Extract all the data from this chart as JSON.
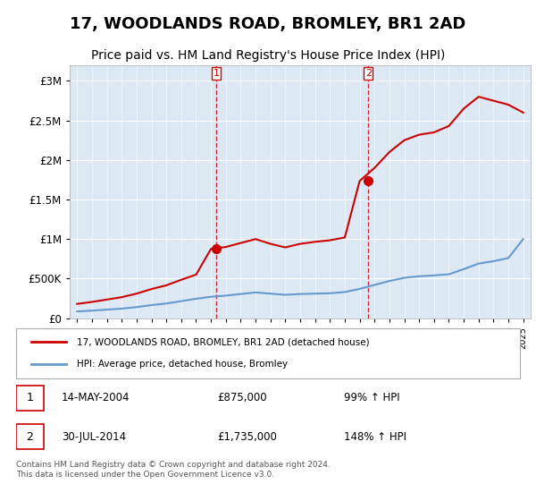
{
  "title": "17, WOODLANDS ROAD, BROMLEY, BR1 2AD",
  "subtitle": "Price paid vs. HM Land Registry's House Price Index (HPI)",
  "title_fontsize": 13,
  "subtitle_fontsize": 10,
  "hpi_years": [
    1995,
    1996,
    1997,
    1998,
    1999,
    2000,
    2001,
    2002,
    2003,
    2004,
    2005,
    2006,
    2007,
    2008,
    2009,
    2010,
    2011,
    2012,
    2013,
    2014,
    2015,
    2016,
    2017,
    2018,
    2019,
    2020,
    2021,
    2022,
    2023,
    2024,
    2025
  ],
  "hpi_values": [
    85000,
    95000,
    108000,
    120000,
    140000,
    165000,
    185000,
    215000,
    245000,
    270000,
    285000,
    305000,
    325000,
    310000,
    295000,
    305000,
    310000,
    315000,
    330000,
    370000,
    420000,
    470000,
    510000,
    530000,
    540000,
    555000,
    620000,
    690000,
    720000,
    760000,
    1000000
  ],
  "red_line_years": [
    1995,
    1996,
    1997,
    1998,
    1999,
    2000,
    2001,
    2002,
    2003,
    2004,
    2005,
    2006,
    2007,
    2008,
    2009,
    2010,
    2011,
    2012,
    2013,
    2014,
    2015,
    2016,
    2017,
    2018,
    2019,
    2020,
    2021,
    2022,
    2023,
    2024,
    2025
  ],
  "red_line_values": [
    180000,
    205000,
    235000,
    265000,
    310000,
    368000,
    415000,
    485000,
    550000,
    875000,
    900000,
    950000,
    1000000,
    940000,
    895000,
    940000,
    965000,
    985000,
    1020000,
    1735000,
    1900000,
    2100000,
    2250000,
    2320000,
    2350000,
    2430000,
    2650000,
    2800000,
    2750000,
    2700000,
    2600000
  ],
  "sale1_year": 2004.37,
  "sale1_value": 875000,
  "sale2_year": 2014.58,
  "sale2_value": 1735000,
  "vline1_year": 2004.37,
  "vline2_year": 2014.58,
  "ylim": [
    0,
    3200000
  ],
  "yticks": [
    0,
    500000,
    1000000,
    1500000,
    2000000,
    2500000,
    3000000
  ],
  "ytick_labels": [
    "£0",
    "£500K",
    "£1M",
    "£1.5M",
    "£2M",
    "£2.5M",
    "£3M"
  ],
  "red_color": "#cc0000",
  "blue_color": "#6699cc",
  "vline_color": "#cc0000",
  "bg_color": "#dce9f5",
  "plot_bg": "#dce9f5",
  "legend_line1": "17, WOODLANDS ROAD, BROMLEY, BR1 2AD (detached house)",
  "legend_line2": "HPI: Average price, detached house, Bromley",
  "annot1_label": "1",
  "annot1_date": "14-MAY-2004",
  "annot1_price": "£875,000",
  "annot1_pct": "99% ↑ HPI",
  "annot2_label": "2",
  "annot2_date": "30-JUL-2014",
  "annot2_price": "£1,735,000",
  "annot2_pct": "148% ↑ HPI",
  "footer": "Contains HM Land Registry data © Crown copyright and database right 2024.\nThis data is licensed under the Open Government Licence v3.0.",
  "xlim_start": 1994.5,
  "xlim_end": 2025.5
}
